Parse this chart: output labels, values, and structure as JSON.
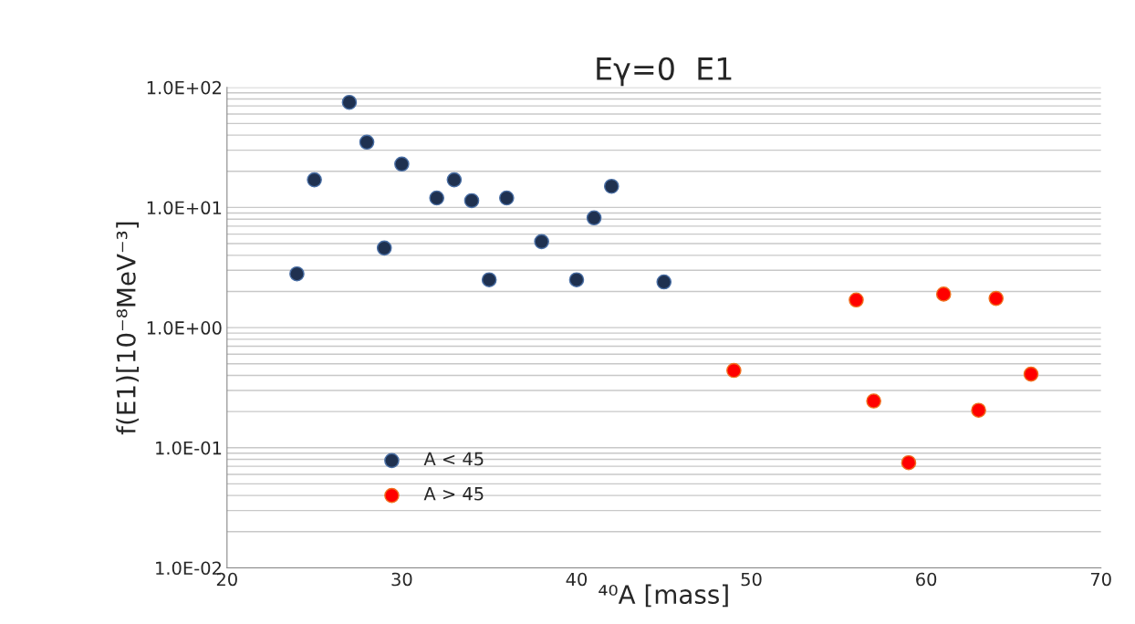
{
  "chart_data": {
    "type": "scatter",
    "title": "Eγ=0  E1",
    "xlabel": "⁴⁰A [mass]",
    "ylabel": "f(E1)[10⁻⁸MeV⁻³]",
    "log": "y",
    "grid": "y",
    "legend": "bottom left",
    "marker": "circle",
    "xlim": [
      20,
      70
    ],
    "xticks": [
      20,
      30,
      40,
      50,
      60,
      70
    ],
    "ylim": [
      0.01,
      100
    ],
    "yticks": [
      {
        "value": 0.01,
        "label": "1.0E-02"
      },
      {
        "value": 0.1,
        "label": "1.0E-01"
      },
      {
        "value": 1,
        "label": "1.0E+00"
      },
      {
        "value": 10,
        "label": "1.0E+01"
      },
      {
        "value": 100,
        "label": "1.0E+02"
      }
    ],
    "series": [
      {
        "name": "A < 45",
        "color": "#1f3150",
        "x": [
          24,
          25,
          27,
          28,
          29,
          30,
          32,
          33,
          34,
          35,
          36,
          38,
          40,
          41,
          42,
          45
        ],
        "values": [
          2.8,
          17,
          75,
          35,
          4.6,
          23,
          12,
          17,
          11.4,
          2.5,
          12,
          5.2,
          2.5,
          8.2,
          15,
          2.4
        ]
      },
      {
        "name": "A > 45",
        "color": "#ff0000",
        "x": [
          49,
          56,
          57,
          59,
          61,
          63,
          64,
          66
        ],
        "values": [
          0.44,
          1.7,
          0.245,
          0.075,
          1.9,
          0.205,
          1.75,
          0.41
        ]
      }
    ]
  }
}
